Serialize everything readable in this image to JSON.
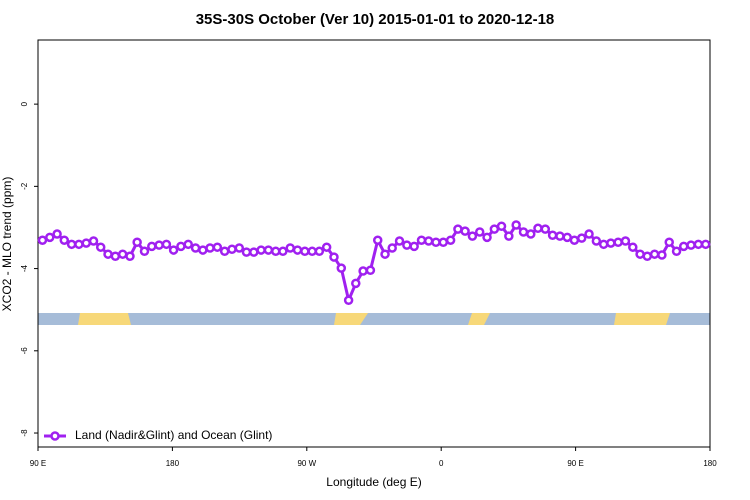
{
  "chart_data": {
    "type": "line",
    "title": "35S-30S October (Ver 10)   2015-01-01 to 2020-12-18",
    "x_label": "Longitude (deg E)",
    "y_label": "XCO2 - MLO trend (ppm)",
    "xlim": [
      90,
      540
    ],
    "ylim": [
      -8.34,
      1.56
    ],
    "xticks": [
      {
        "value": 90,
        "label": "90 E"
      },
      180,
      {
        "value": 270,
        "label": "90 W"
      },
      {
        "value": 360,
        "label": "0"
      },
      {
        "value": 450,
        "label": "90 E"
      },
      {
        "value": 540,
        "label": "180"
      }
    ],
    "yticks": [
      0,
      -2,
      -4,
      -6,
      -8
    ],
    "legend": "bottom-left",
    "x": [
      93.0,
      97.9,
      102.8,
      107.6,
      112.5,
      117.4,
      122.3,
      127.2,
      132.0,
      136.9,
      141.8,
      146.7,
      151.6,
      156.4,
      161.3,
      166.2,
      171.1,
      176.0,
      180.8,
      185.7,
      190.6,
      195.5,
      200.4,
      205.2,
      210.1,
      215.0,
      219.9,
      224.8,
      229.6,
      234.5,
      239.4,
      244.3,
      249.2,
      254.0,
      258.9,
      263.8,
      268.7,
      273.6,
      278.4,
      283.3,
      288.2,
      293.1,
      298.0,
      302.8,
      307.7,
      312.6,
      317.5,
      322.4,
      327.2,
      332.1,
      337.0,
      341.9,
      346.8,
      351.6,
      356.5,
      361.4,
      366.3,
      371.2,
      376.0,
      380.9,
      385.8,
      390.7,
      395.6,
      400.4,
      405.3,
      410.2,
      415.1,
      420.0,
      424.8,
      429.7,
      434.6,
      439.5,
      444.4,
      449.2,
      454.1,
      459.0,
      463.9,
      468.8,
      473.6,
      478.5,
      483.4,
      488.3,
      493.2,
      498.0,
      502.9,
      507.8,
      512.7,
      517.6,
      522.4,
      527.3,
      532.2,
      537.1
    ],
    "series": [
      {
        "name": "Land (Nadir&Glint) and Ocean (Glint)",
        "color": "#a020f0",
        "values": [
          -3.31,
          -3.24,
          -3.16,
          -3.31,
          -3.41,
          -3.41,
          -3.38,
          -3.33,
          -3.48,
          -3.65,
          -3.7,
          -3.65,
          -3.7,
          -3.36,
          -3.58,
          -3.46,
          -3.43,
          -3.41,
          -3.55,
          -3.46,
          -3.41,
          -3.5,
          -3.55,
          -3.5,
          -3.48,
          -3.58,
          -3.53,
          -3.5,
          -3.6,
          -3.6,
          -3.55,
          -3.55,
          -3.58,
          -3.58,
          -3.5,
          -3.55,
          -3.58,
          -3.58,
          -3.58,
          -3.48,
          -3.72,
          -3.99,
          -4.77,
          -4.36,
          -4.06,
          -4.04,
          -3.31,
          -3.65,
          -3.5,
          -3.33,
          -3.43,
          -3.46,
          -3.31,
          -3.33,
          -3.36,
          -3.36,
          -3.31,
          -3.04,
          -3.09,
          -3.21,
          -3.11,
          -3.24,
          -3.04,
          -2.97,
          -3.21,
          -2.94,
          -3.11,
          -3.16,
          -3.02,
          -3.04,
          -3.19,
          -3.21,
          -3.24,
          -3.31,
          -3.26,
          -3.16,
          -3.33,
          -3.41,
          -3.38,
          -3.36,
          -3.33,
          -3.48,
          -3.65,
          -3.7,
          -3.65,
          -3.67,
          -3.36,
          -3.58,
          -3.46,
          -3.43,
          -3.41,
          -3.41
        ]
      }
    ]
  }
}
